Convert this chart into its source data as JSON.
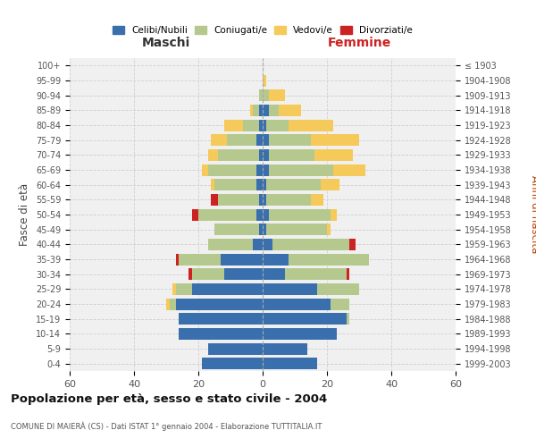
{
  "age_groups": [
    "0-4",
    "5-9",
    "10-14",
    "15-19",
    "20-24",
    "25-29",
    "30-34",
    "35-39",
    "40-44",
    "45-49",
    "50-54",
    "55-59",
    "60-64",
    "65-69",
    "70-74",
    "75-79",
    "80-84",
    "85-89",
    "90-94",
    "95-99",
    "100+"
  ],
  "birth_years": [
    "1999-2003",
    "1994-1998",
    "1989-1993",
    "1984-1988",
    "1979-1983",
    "1974-1978",
    "1969-1973",
    "1964-1968",
    "1959-1963",
    "1954-1958",
    "1949-1953",
    "1944-1948",
    "1939-1943",
    "1934-1938",
    "1929-1933",
    "1924-1928",
    "1919-1923",
    "1914-1918",
    "1909-1913",
    "1904-1908",
    "≤ 1903"
  ],
  "colors": {
    "celibi": "#3a6fad",
    "coniugati": "#b5c98e",
    "vedovi": "#f5c95a",
    "divorziati": "#cc2222",
    "grid": "#cccccc",
    "bg": "#f0f0f0",
    "axis_bg": "#ffffff"
  },
  "maschi": {
    "celibi": [
      19,
      17,
      26,
      26,
      27,
      22,
      12,
      13,
      3,
      1,
      2,
      1,
      2,
      2,
      1,
      2,
      1,
      1,
      0,
      0,
      0
    ],
    "coniugati": [
      0,
      0,
      0,
      0,
      2,
      5,
      10,
      13,
      14,
      14,
      18,
      13,
      13,
      15,
      13,
      9,
      5,
      2,
      1,
      0,
      0
    ],
    "vedovi": [
      0,
      0,
      0,
      0,
      1,
      1,
      0,
      0,
      0,
      0,
      0,
      0,
      1,
      2,
      3,
      5,
      6,
      1,
      0,
      0,
      0
    ],
    "divorziati": [
      0,
      0,
      0,
      0,
      0,
      0,
      1,
      1,
      0,
      0,
      2,
      2,
      0,
      0,
      0,
      0,
      0,
      0,
      0,
      0,
      0
    ]
  },
  "femmine": {
    "celibi": [
      17,
      14,
      23,
      26,
      21,
      17,
      7,
      8,
      3,
      1,
      2,
      1,
      1,
      2,
      2,
      2,
      1,
      2,
      0,
      0,
      0
    ],
    "coniugati": [
      0,
      0,
      0,
      1,
      6,
      13,
      19,
      25,
      24,
      19,
      19,
      14,
      17,
      20,
      14,
      13,
      7,
      3,
      2,
      0,
      0
    ],
    "vedovi": [
      0,
      0,
      0,
      0,
      0,
      0,
      0,
      0,
      0,
      1,
      2,
      4,
      6,
      10,
      12,
      15,
      14,
      7,
      5,
      1,
      0
    ],
    "divorziati": [
      0,
      0,
      0,
      0,
      0,
      0,
      1,
      0,
      2,
      0,
      0,
      0,
      0,
      0,
      0,
      0,
      0,
      0,
      0,
      0,
      0
    ]
  },
  "xlim": 60,
  "title_main": "Popolazione per età, sesso e stato civile - 2004",
  "title_sub": "COMUNE DI MAIERÀ (CS) - Dati ISTAT 1° gennaio 2004 - Elaborazione TUTTITALIA.IT",
  "ylabel_left": "Fasce di età",
  "ylabel_right": "Anni di nascita",
  "xlabel_maschi": "Maschi",
  "xlabel_femmine": "Femmine",
  "legend_labels": [
    "Celibi/Nubili",
    "Coniugati/e",
    "Vedovi/e",
    "Divorziati/e"
  ]
}
